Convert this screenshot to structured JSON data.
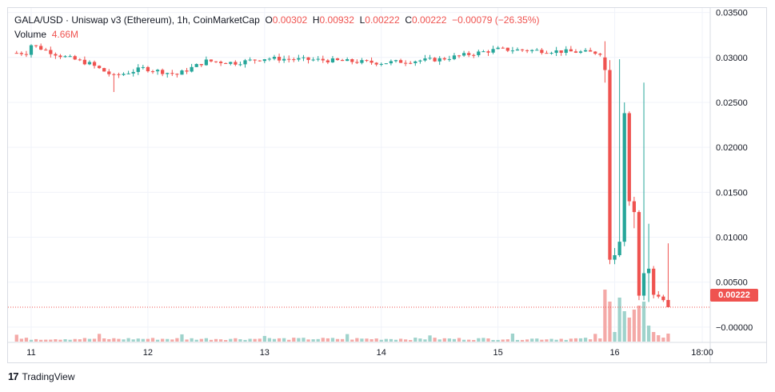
{
  "legend": {
    "title": "GALA/USD · Uniswap v3 (Ethereum), 1h, CoinMarketCap",
    "o_label": "O",
    "o_value": "0.00302",
    "h_label": "H",
    "h_value": "0.00932",
    "l_label": "L",
    "l_value": "0.00222",
    "c_label": "C",
    "c_value": "0.00222",
    "change": "−0.00079 (−26.35%)",
    "volume_label": "Volume",
    "volume_value": "4.66M"
  },
  "price_tag": "0.00222",
  "brand": {
    "logo": "17",
    "name": "TradingView"
  },
  "colors": {
    "up": "#26a69a",
    "down": "#ef5350",
    "up_vol": "#9fd3cc",
    "down_vol": "#f4a9a7",
    "grid": "#f0f3fa"
  },
  "chart_data": {
    "type": "candlestick",
    "y_ticks": [
      "0.03500",
      "0.03000",
      "0.02500",
      "0.02000",
      "0.01500",
      "0.01000",
      "0.00500",
      "−0.00000"
    ],
    "y_tick_values": [
      0.035,
      0.03,
      0.025,
      0.02,
      0.015,
      0.01,
      0.005,
      0.0
    ],
    "ylim": [
      -0.0017,
      0.0355
    ],
    "x_ticks": [
      "11",
      "12",
      "13",
      "14",
      "15",
      "16",
      "18:00"
    ],
    "x_tick_hours": [
      0,
      24,
      48,
      72,
      96,
      120,
      138
    ],
    "last_price": 0.00222,
    "series_daily_anchor_prices": [
      [
        0,
        0.0314
      ],
      [
        6,
        0.0302
      ],
      [
        12,
        0.0293
      ],
      [
        17,
        0.0279
      ],
      [
        23,
        0.0288
      ],
      [
        30,
        0.0281
      ],
      [
        36,
        0.0296
      ],
      [
        42,
        0.0294
      ],
      [
        48,
        0.0299
      ],
      [
        60,
        0.0297
      ],
      [
        72,
        0.0294
      ],
      [
        84,
        0.0298
      ],
      [
        96,
        0.0309
      ],
      [
        108,
        0.0307
      ],
      [
        118,
        0.0305
      ]
    ],
    "crash_candles": [
      {
        "h": 118,
        "o": 0.03,
        "h_": 0.0318,
        "l": 0.0272,
        "c": 0.0286
      },
      {
        "h": 119,
        "o": 0.0286,
        "h_": 0.0297,
        "l": 0.007,
        "c": 0.0075
      },
      {
        "h": 120,
        "o": 0.0075,
        "h_": 0.0088,
        "l": 0.007,
        "c": 0.008
      },
      {
        "h": 121,
        "o": 0.008,
        "h_": 0.0298,
        "l": 0.0078,
        "c": 0.0095
      },
      {
        "h": 122,
        "o": 0.0095,
        "h_": 0.025,
        "l": 0.009,
        "c": 0.0238
      },
      {
        "h": 123,
        "o": 0.0238,
        "h_": 0.024,
        "l": 0.0135,
        "c": 0.014
      },
      {
        "h": 124,
        "o": 0.014,
        "h_": 0.0145,
        "l": 0.011,
        "c": 0.0128
      },
      {
        "h": 125,
        "o": 0.0128,
        "h_": 0.013,
        "l": 0.003,
        "c": 0.0035
      },
      {
        "h": 126,
        "o": 0.0035,
        "h_": 0.0272,
        "l": 0.003,
        "c": 0.006
      },
      {
        "h": 127,
        "o": 0.006,
        "h_": 0.0115,
        "l": 0.0028,
        "c": 0.0065
      },
      {
        "h": 128,
        "o": 0.0065,
        "h_": 0.0068,
        "l": 0.0032,
        "c": 0.0036
      },
      {
        "h": 129,
        "o": 0.0036,
        "h_": 0.004,
        "l": 0.0032,
        "c": 0.0034
      },
      {
        "h": 130,
        "o": 0.0034,
        "h_": 0.0036,
        "l": 0.0028,
        "c": 0.003
      },
      {
        "h": 131,
        "o": 0.00302,
        "h_": 0.00932,
        "l": 0.00222,
        "c": 0.00222
      }
    ]
  }
}
